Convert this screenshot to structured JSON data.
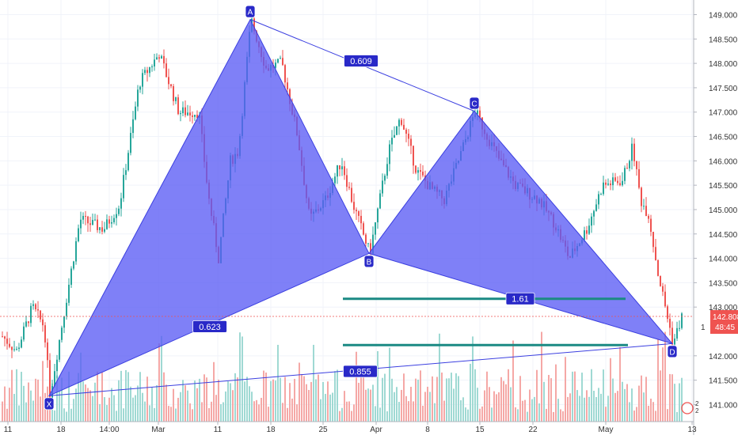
{
  "chart_data": {
    "type": "candlestick",
    "ylim": [
      140.65,
      149.3
    ],
    "price_ticks": [
      "149.000",
      "148.500",
      "148.000",
      "147.500",
      "147.000",
      "146.500",
      "146.000",
      "145.500",
      "145.000",
      "144.500",
      "144.000",
      "143.500",
      "143.000",
      "142.000",
      "141.500",
      "141.000"
    ],
    "price_tick_values": [
      149.0,
      148.5,
      148.0,
      147.5,
      147.0,
      146.5,
      146.0,
      145.5,
      145.0,
      144.5,
      144.0,
      143.5,
      143.0,
      142.0,
      141.5,
      141.0
    ],
    "time_ticks": [
      "11",
      "18",
      "14:00",
      "Mar",
      "11",
      "18",
      "25",
      "Apr",
      "8",
      "15",
      "22",
      "May",
      "13"
    ],
    "time_tick_x": [
      10,
      77,
      138,
      200,
      275,
      342,
      408,
      475,
      540,
      606,
      673,
      765,
      874
    ],
    "current_price": {
      "value": 142.808,
      "label": "142.808",
      "countdown": "48:45",
      "tick_label": "1",
      "color": "#ef5350"
    },
    "harmonic_pattern": {
      "fill_color": "#5b5cf5",
      "line_color": "#3b3fe0",
      "points": [
        {
          "label": "X",
          "t": 62,
          "price": 141.18
        },
        {
          "label": "A",
          "t": 316,
          "price": 148.9
        },
        {
          "label": "B",
          "t": 466,
          "price": 144.1
        },
        {
          "label": "C",
          "t": 599,
          "price": 147.02
        },
        {
          "label": "D",
          "t": 849,
          "price": 142.25
        }
      ],
      "ratios": [
        {
          "label": "0.609",
          "t": 456,
          "price": 148.05
        },
        {
          "label": "0.623",
          "t": 265,
          "price": 142.6
        },
        {
          "label": "1.61",
          "t": 657,
          "price": 143.17
        },
        {
          "label": "0.855",
          "t": 455,
          "price": 141.68
        }
      ],
      "targets": [
        {
          "t1": 433,
          "t2": 790,
          "price": 143.17
        },
        {
          "t1": 433,
          "t2": 793,
          "price": 142.22
        }
      ]
    },
    "colors": {
      "up": "#26a69a",
      "down": "#ef5350",
      "up_volume": "#9fd9d3",
      "down_volume": "#f5a8a6"
    }
  }
}
